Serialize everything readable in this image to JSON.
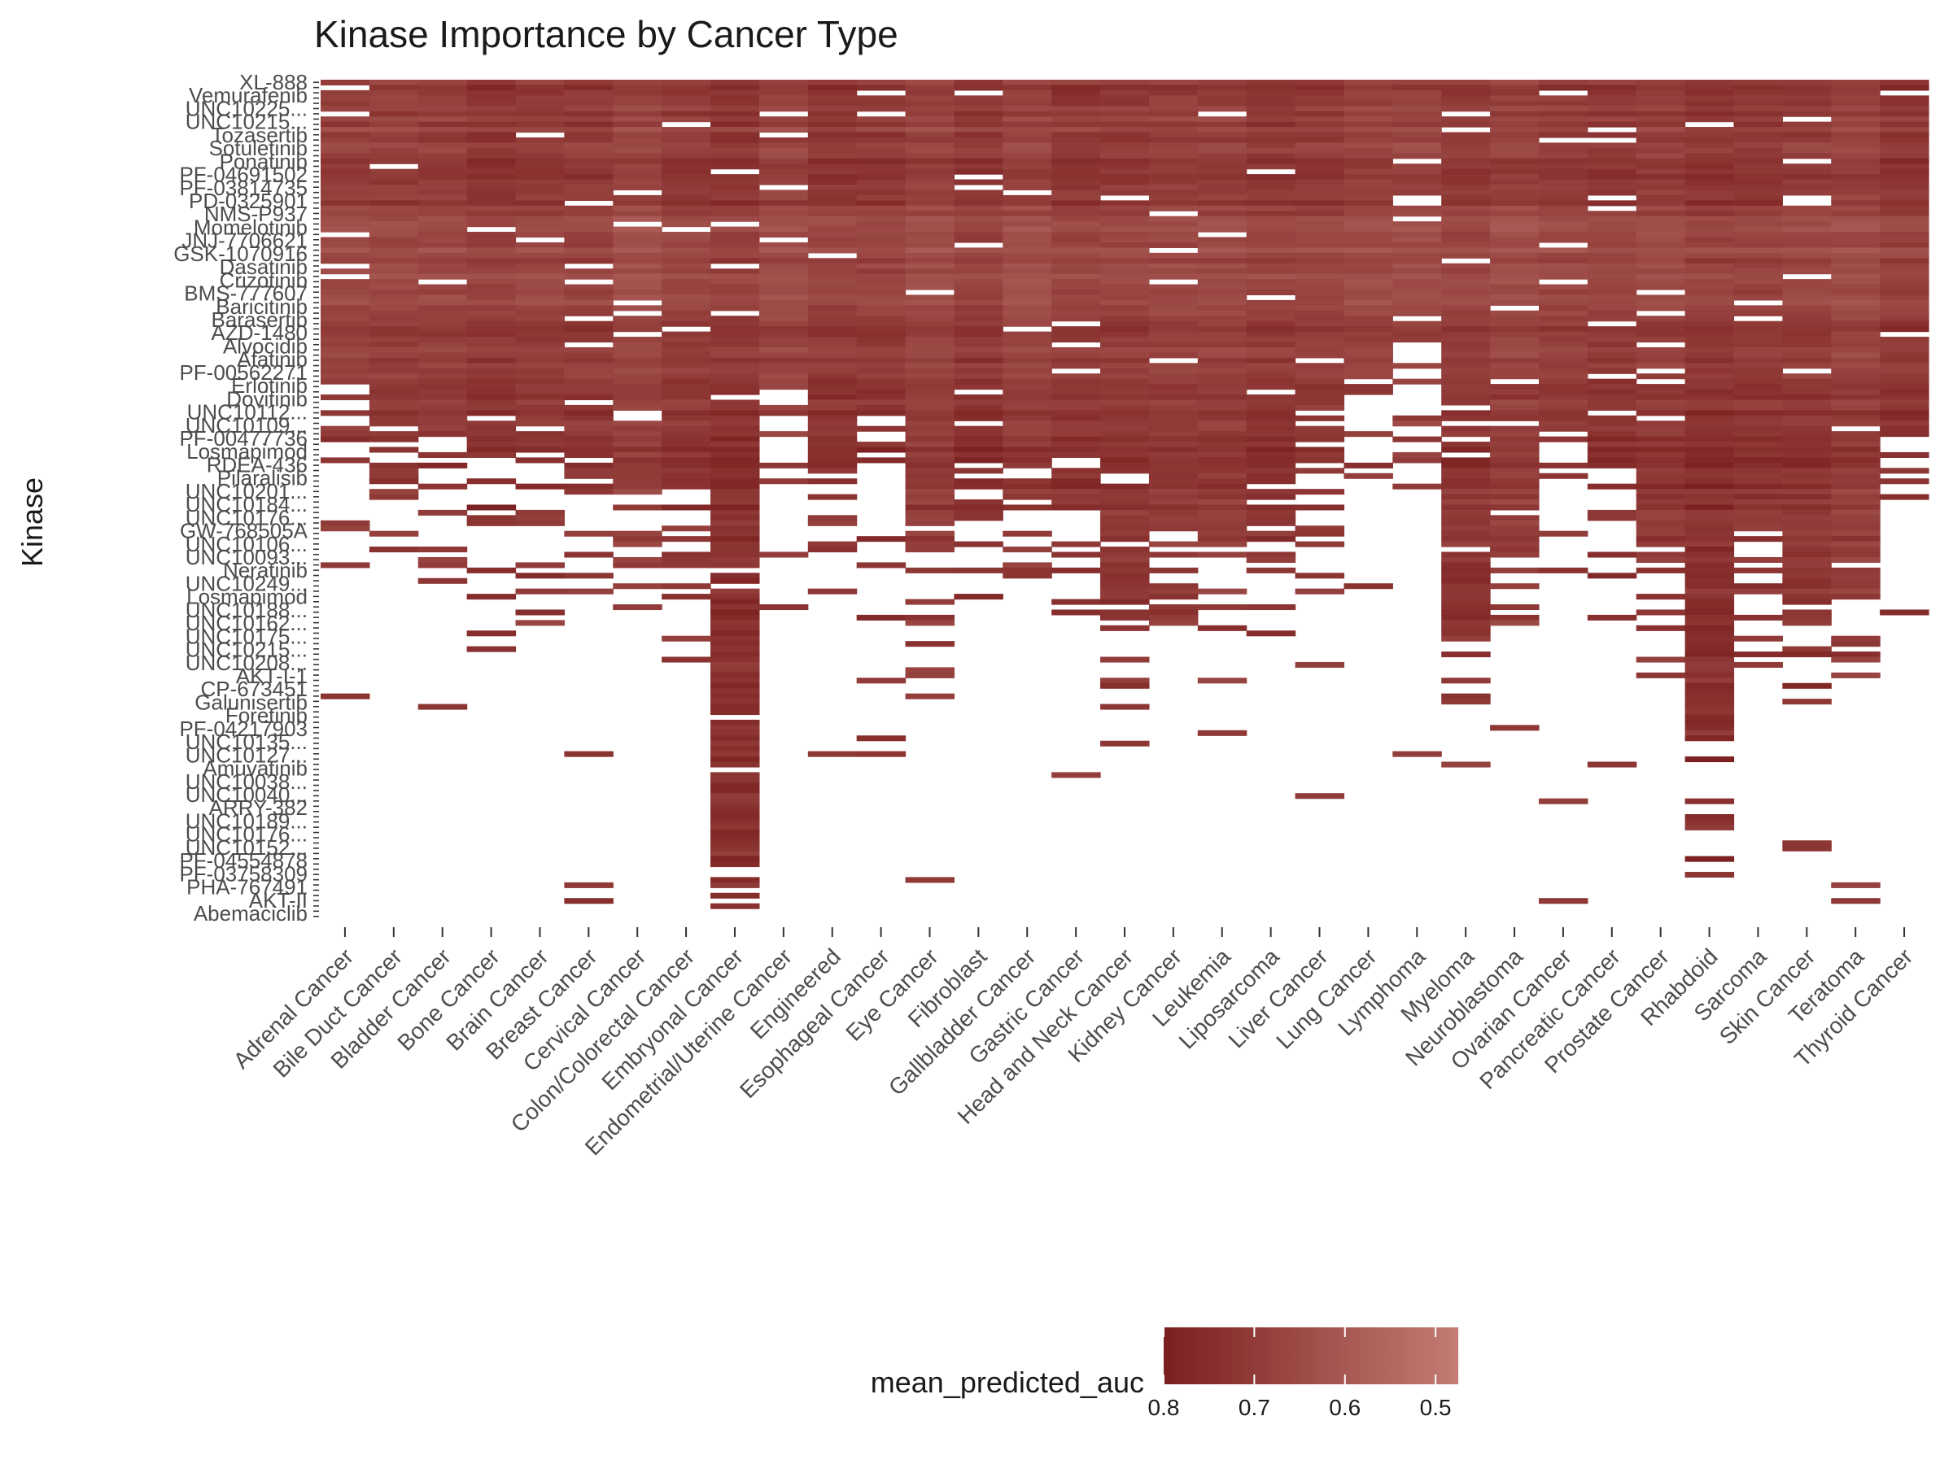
{
  "chart_data": {
    "type": "heatmap",
    "title": "Kinase Importance by Cancer Type",
    "xlabel": "",
    "ylabel": "Kinase",
    "x_categories": [
      "Adrenal Cancer",
      "Bile Duct Cancer",
      "Bladder Cancer",
      "Bone Cancer",
      "Brain Cancer",
      "Breast Cancer",
      "Cervical Cancer",
      "Colon/Colorectal Cancer",
      "Embryonal Cancer",
      "Endometrial/Uterine Cancer",
      "Engineered",
      "Esophageal Cancer",
      "Eye Cancer",
      "Fibroblast",
      "Gallbladder Cancer",
      "Gastric Cancer",
      "Head and Neck Cancer",
      "Kidney Cancer",
      "Leukemia",
      "Liposarcoma",
      "Liver Cancer",
      "Lung Cancer",
      "Lymphoma",
      "Myeloma",
      "Neuroblastoma",
      "Ovarian Cancer",
      "Pancreatic Cancer",
      "Prostate Cancer",
      "Rhabdoid",
      "Sarcoma",
      "Skin Cancer",
      "Teratoma",
      "Thyroid Cancer"
    ],
    "y_tick_labels_visible": [
      "XL-888",
      "Vemurafenib",
      "UNC10225...",
      "UNC10215...",
      "Tozasertib",
      "Sotuletinib",
      "Ponatinib",
      "PF-04691502",
      "PF-03814735",
      "PD-0325901",
      "NMS-P937",
      "Momelotinib",
      "JNJ-7706621",
      "GSK-1070916",
      "Dasatinib",
      "Crizotinib",
      "BMS-777607",
      "Baricitinib",
      "Barasertib",
      "AZD-1480",
      "Alvocidib",
      "Afatinib",
      "PF-00562271",
      "Erlotinib",
      "Dovitinib",
      "UNC10112...",
      "UNC10109...",
      "PF-00477736",
      "Losmapimod",
      "RDEA-436",
      "Pilaralisib",
      "UNC10201...",
      "UNC10184...",
      "UNC10176...",
      "GW-768505A",
      "UNC10106...",
      "UNC10093...",
      "Neratinib",
      "UNC10249...",
      "Losmapimod",
      "UNC10188...",
      "UNC10162...",
      "UNC10175...",
      "UNC10215...",
      "UNC10208...",
      "AKT-I-1",
      "CP-673451",
      "Galunisertib",
      "Foretinib",
      "PF-04217903",
      "UNC10135...",
      "UNC10127...",
      "Amuvatinib",
      "UNC10038...",
      "UNC10040...",
      "ARRY-382",
      "UNC10189...",
      "UNC10176...",
      "UNC10152...",
      "PF-04554878",
      "PF-03758309",
      "PHA-767491",
      "AKT-II",
      "Abemaciclib"
    ],
    "n_rows": 160,
    "value_label": "mean_predicted_auc",
    "color_range": [
      0.8,
      0.475
    ],
    "color_low_hex": "#7a1f1f",
    "color_high_hex": "#c47c74",
    "missing_color": "#ffffff",
    "legend_position": "bottom",
    "legend_ticks": [
      "0.8",
      "0.7",
      "0.6",
      "0.5"
    ],
    "legend_tick_values": [
      0.8,
      0.7,
      0.6,
      0.5
    ],
    "grid": false,
    "cutoff_row_by_column": [
      57,
      66,
      68,
      72,
      73,
      70,
      78,
      77,
      150,
      59,
      75,
      64,
      85,
      75,
      72,
      72,
      100,
      86,
      89,
      77,
      65,
      55,
      50,
      107,
      90,
      67,
      74,
      88,
      125,
      86,
      104,
      92,
      64
    ],
    "row_mean": "0.70 at top rows, ~0.62 band around rows 27-44, ~0.71 below"
  }
}
